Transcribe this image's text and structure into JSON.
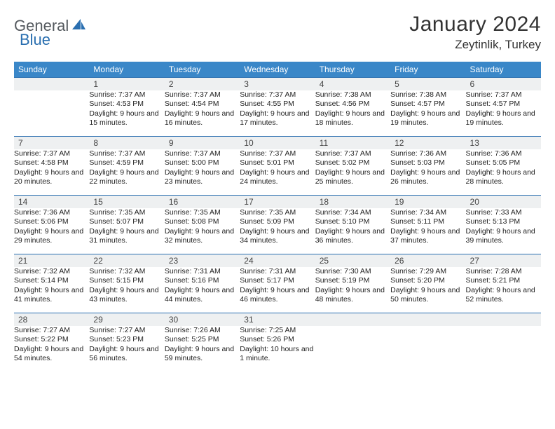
{
  "logo": {
    "part1": "General",
    "part2": "Blue"
  },
  "title": "January 2024",
  "location": "Zeytinlik, Turkey",
  "weekdays": [
    "Sunday",
    "Monday",
    "Tuesday",
    "Wednesday",
    "Thursday",
    "Friday",
    "Saturday"
  ],
  "header_bg": "#3a87c8",
  "divider_color": "#2a6fb0",
  "daynum_bg": "#eef0f1",
  "weeks": [
    {
      "days": [
        {
          "blank": true
        },
        {
          "n": "1",
          "sr": "7:37 AM",
          "ss": "4:53 PM",
          "dl": "9 hours and 15 minutes."
        },
        {
          "n": "2",
          "sr": "7:37 AM",
          "ss": "4:54 PM",
          "dl": "9 hours and 16 minutes."
        },
        {
          "n": "3",
          "sr": "7:37 AM",
          "ss": "4:55 PM",
          "dl": "9 hours and 17 minutes."
        },
        {
          "n": "4",
          "sr": "7:38 AM",
          "ss": "4:56 PM",
          "dl": "9 hours and 18 minutes."
        },
        {
          "n": "5",
          "sr": "7:38 AM",
          "ss": "4:57 PM",
          "dl": "9 hours and 19 minutes."
        },
        {
          "n": "6",
          "sr": "7:37 AM",
          "ss": "4:57 PM",
          "dl": "9 hours and 19 minutes."
        }
      ]
    },
    {
      "days": [
        {
          "n": "7",
          "sr": "7:37 AM",
          "ss": "4:58 PM",
          "dl": "9 hours and 20 minutes."
        },
        {
          "n": "8",
          "sr": "7:37 AM",
          "ss": "4:59 PM",
          "dl": "9 hours and 22 minutes."
        },
        {
          "n": "9",
          "sr": "7:37 AM",
          "ss": "5:00 PM",
          "dl": "9 hours and 23 minutes."
        },
        {
          "n": "10",
          "sr": "7:37 AM",
          "ss": "5:01 PM",
          "dl": "9 hours and 24 minutes."
        },
        {
          "n": "11",
          "sr": "7:37 AM",
          "ss": "5:02 PM",
          "dl": "9 hours and 25 minutes."
        },
        {
          "n": "12",
          "sr": "7:36 AM",
          "ss": "5:03 PM",
          "dl": "9 hours and 26 minutes."
        },
        {
          "n": "13",
          "sr": "7:36 AM",
          "ss": "5:05 PM",
          "dl": "9 hours and 28 minutes."
        }
      ]
    },
    {
      "days": [
        {
          "n": "14",
          "sr": "7:36 AM",
          "ss": "5:06 PM",
          "dl": "9 hours and 29 minutes."
        },
        {
          "n": "15",
          "sr": "7:35 AM",
          "ss": "5:07 PM",
          "dl": "9 hours and 31 minutes."
        },
        {
          "n": "16",
          "sr": "7:35 AM",
          "ss": "5:08 PM",
          "dl": "9 hours and 32 minutes."
        },
        {
          "n": "17",
          "sr": "7:35 AM",
          "ss": "5:09 PM",
          "dl": "9 hours and 34 minutes."
        },
        {
          "n": "18",
          "sr": "7:34 AM",
          "ss": "5:10 PM",
          "dl": "9 hours and 36 minutes."
        },
        {
          "n": "19",
          "sr": "7:34 AM",
          "ss": "5:11 PM",
          "dl": "9 hours and 37 minutes."
        },
        {
          "n": "20",
          "sr": "7:33 AM",
          "ss": "5:13 PM",
          "dl": "9 hours and 39 minutes."
        }
      ]
    },
    {
      "days": [
        {
          "n": "21",
          "sr": "7:32 AM",
          "ss": "5:14 PM",
          "dl": "9 hours and 41 minutes."
        },
        {
          "n": "22",
          "sr": "7:32 AM",
          "ss": "5:15 PM",
          "dl": "9 hours and 43 minutes."
        },
        {
          "n": "23",
          "sr": "7:31 AM",
          "ss": "5:16 PM",
          "dl": "9 hours and 44 minutes."
        },
        {
          "n": "24",
          "sr": "7:31 AM",
          "ss": "5:17 PM",
          "dl": "9 hours and 46 minutes."
        },
        {
          "n": "25",
          "sr": "7:30 AM",
          "ss": "5:19 PM",
          "dl": "9 hours and 48 minutes."
        },
        {
          "n": "26",
          "sr": "7:29 AM",
          "ss": "5:20 PM",
          "dl": "9 hours and 50 minutes."
        },
        {
          "n": "27",
          "sr": "7:28 AM",
          "ss": "5:21 PM",
          "dl": "9 hours and 52 minutes."
        }
      ]
    },
    {
      "days": [
        {
          "n": "28",
          "sr": "7:27 AM",
          "ss": "5:22 PM",
          "dl": "9 hours and 54 minutes."
        },
        {
          "n": "29",
          "sr": "7:27 AM",
          "ss": "5:23 PM",
          "dl": "9 hours and 56 minutes."
        },
        {
          "n": "30",
          "sr": "7:26 AM",
          "ss": "5:25 PM",
          "dl": "9 hours and 59 minutes."
        },
        {
          "n": "31",
          "sr": "7:25 AM",
          "ss": "5:26 PM",
          "dl": "10 hours and 1 minute."
        },
        {
          "blank": true
        },
        {
          "blank": true
        },
        {
          "blank": true
        }
      ]
    }
  ],
  "labels": {
    "sunrise": "Sunrise: ",
    "sunset": "Sunset: ",
    "daylight": "Daylight: "
  }
}
